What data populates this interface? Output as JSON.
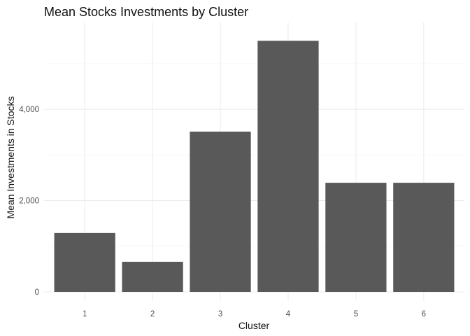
{
  "chart_data": {
    "type": "bar",
    "title": "Mean Stocks Investments by Cluster",
    "xlabel": "Cluster",
    "ylabel": "Mean Investments in Stocks",
    "categories": [
      "1",
      "2",
      "3",
      "4",
      "5",
      "6"
    ],
    "values": [
      1290,
      660,
      3510,
      5500,
      2390,
      2390
    ],
    "ylim": [
      0,
      5780
    ],
    "yticks": [
      0,
      2000,
      4000
    ],
    "ytick_labels": [
      "0",
      "2,000",
      "4,000"
    ],
    "grid": true,
    "bar_color": "#595959"
  }
}
